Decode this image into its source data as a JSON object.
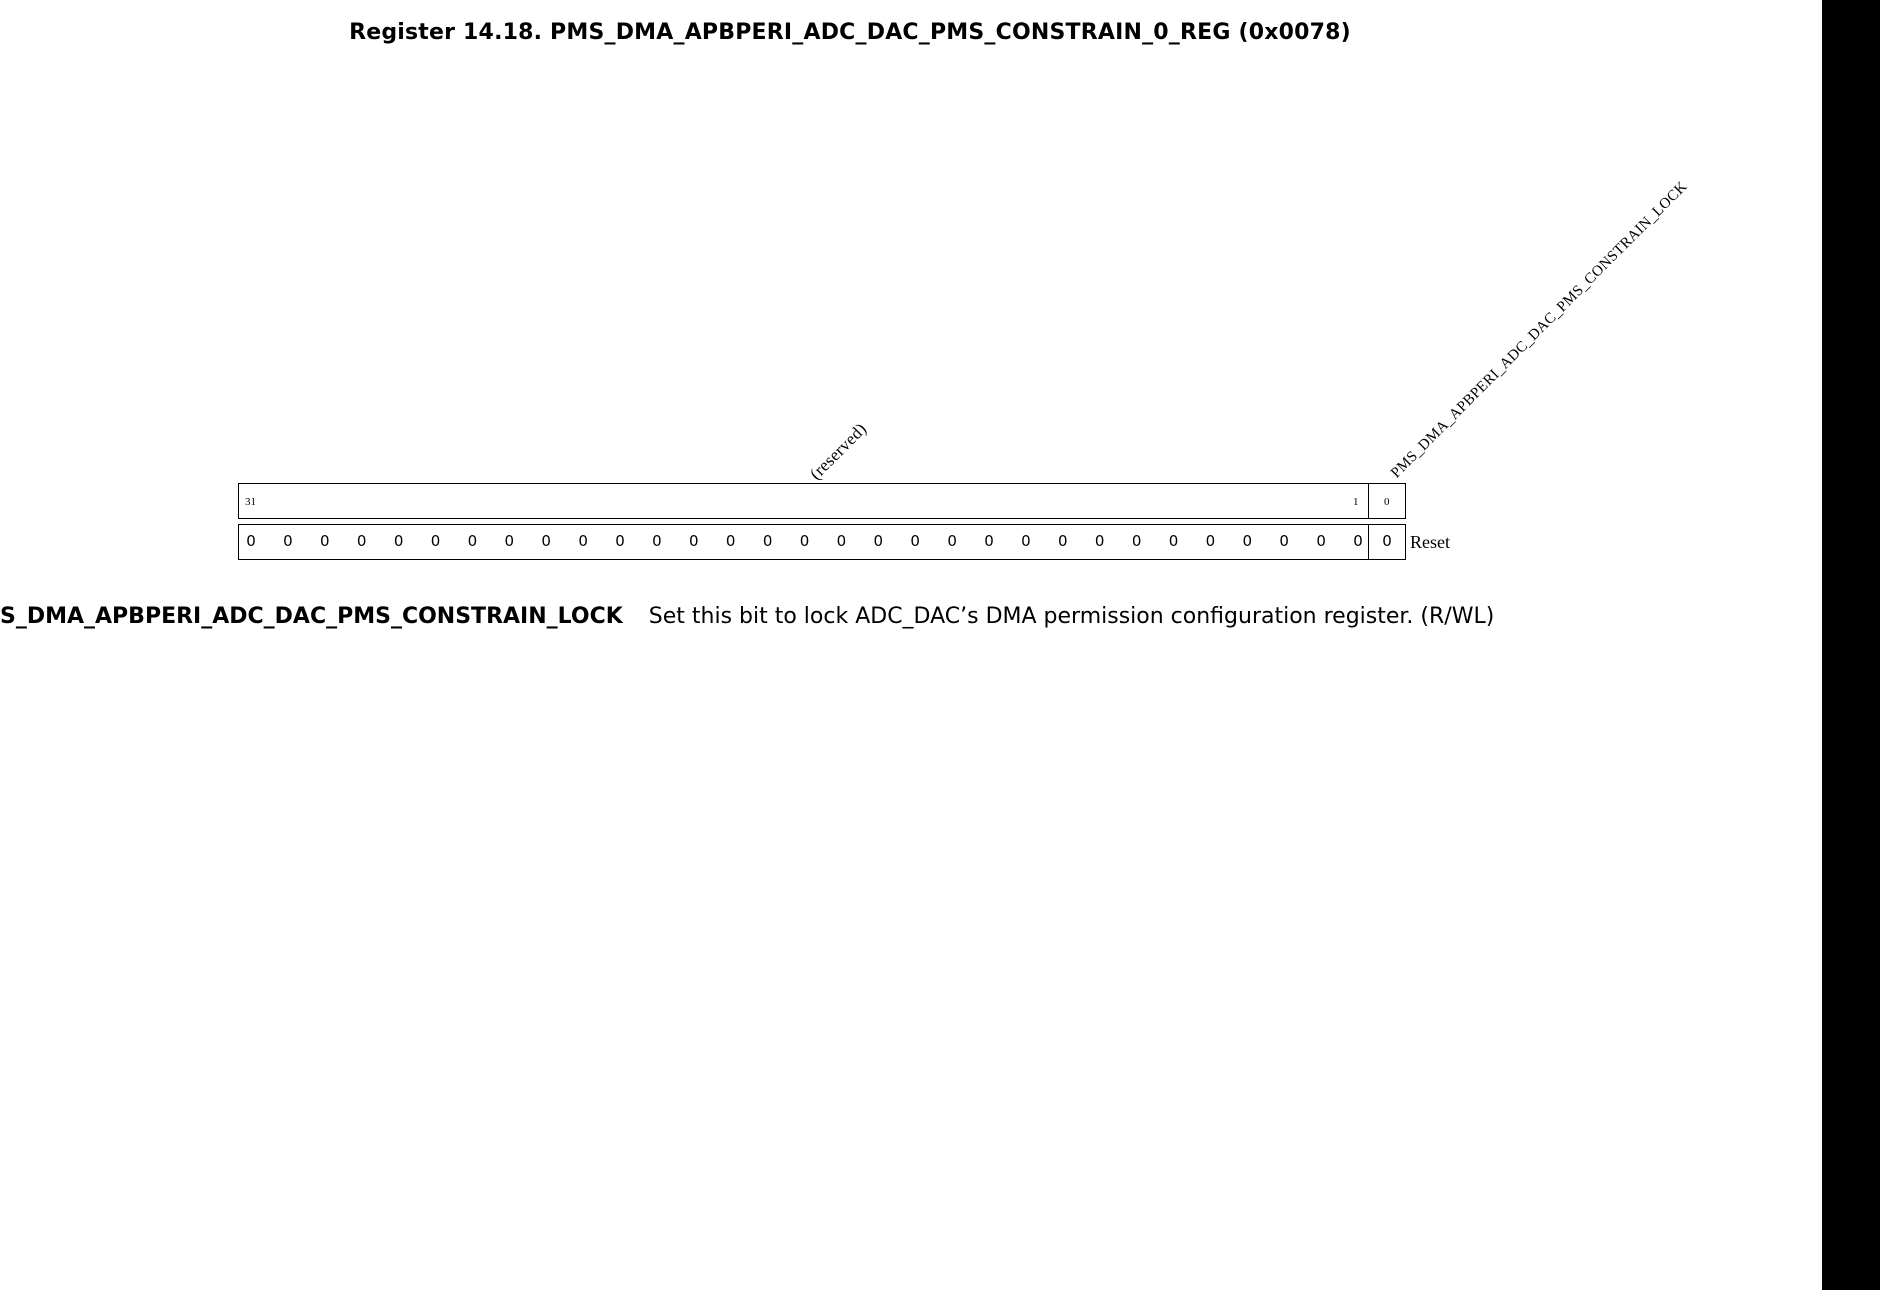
{
  "title": "Register 14.18. PMS_DMA_APBPERI_ADC_DAC_PMS_CONSTRAIN_0_REG (0x0078)",
  "fields": {
    "reserved": {
      "label": "(reserved)",
      "bit_high": "31",
      "bit_low": "1",
      "reset_values": [
        "0",
        "0",
        "0",
        "0",
        "0",
        "0",
        "0",
        "0",
        "0",
        "0",
        "0",
        "0",
        "0",
        "0",
        "0",
        "0",
        "0",
        "0",
        "0",
        "0",
        "0",
        "0",
        "0",
        "0",
        "0",
        "0",
        "0",
        "0",
        "0",
        "0",
        "0"
      ]
    },
    "lock": {
      "label": "PMS_DMA_APBPERI_ADC_DAC_PMS_CONSTRAIN_LOCK",
      "bit": "0",
      "reset_value": "0"
    }
  },
  "reset_label": "Reset",
  "description": {
    "name": "S_DMA_APBPERI_ADC_DAC_PMS_CONSTRAIN_LOCK",
    "text": "Set this bit to lock ADC_DAC’s DMA permission configuration register. (R/WL)"
  }
}
